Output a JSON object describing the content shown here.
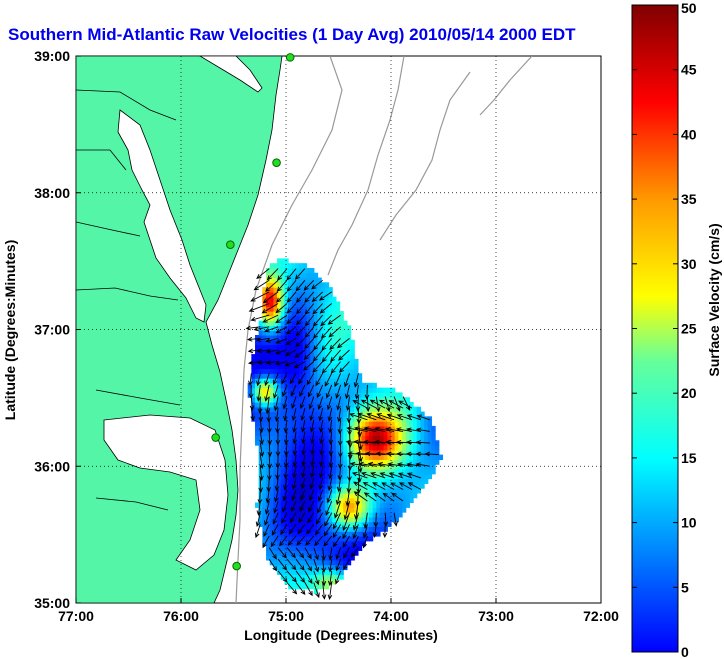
{
  "chart_data": {
    "type": "heatmap",
    "title": "Southern Mid-Atlantic Raw Velocities (1 Day Avg) 2010/05/14 2000 EDT",
    "xlabel": "Longitude (Degrees:Minutes)",
    "ylabel": "Latitude (Degrees:Minutes)",
    "colorbar_label": "Surface Velocity (cm/s)",
    "x_ticks": [
      {
        "value": -77,
        "label": "77:00"
      },
      {
        "value": -76,
        "label": "76:00"
      },
      {
        "value": -75,
        "label": "75:00"
      },
      {
        "value": -74,
        "label": "74:00"
      },
      {
        "value": -73,
        "label": "73:00"
      },
      {
        "value": -72,
        "label": "72:00"
      }
    ],
    "y_ticks": [
      {
        "value": 35,
        "label": "35:00"
      },
      {
        "value": 36,
        "label": "36:00"
      },
      {
        "value": 37,
        "label": "37:00"
      },
      {
        "value": 38,
        "label": "38:00"
      },
      {
        "value": 39,
        "label": "39:00"
      }
    ],
    "xlim": [
      -77,
      -72
    ],
    "ylim": [
      35,
      39
    ],
    "colorbar_range": [
      0,
      50
    ],
    "colorbar_ticks": [
      0,
      5,
      10,
      15,
      20,
      25,
      30,
      35,
      40,
      45,
      50
    ],
    "colormap": "jet",
    "grid": true,
    "grid_style": "dotted",
    "land_color": "#55f5a8",
    "coastline_color": "#000000",
    "bathymetry_color": "#999999",
    "stations": [
      {
        "lon": -74.96,
        "lat": 38.99
      },
      {
        "lon": -75.09,
        "lat": 38.22
      },
      {
        "lon": -75.53,
        "lat": 37.62
      },
      {
        "lon": -75.67,
        "lat": 36.21
      },
      {
        "lon": -75.47,
        "lat": 35.27
      }
    ],
    "velocity_field": {
      "lon_range": [
        -75.25,
        -73.55
      ],
      "lat_range": [
        35.1,
        37.5
      ],
      "speed_range_cm_s": [
        3,
        50
      ],
      "dominant_direction": "southward / southwestward"
    }
  }
}
